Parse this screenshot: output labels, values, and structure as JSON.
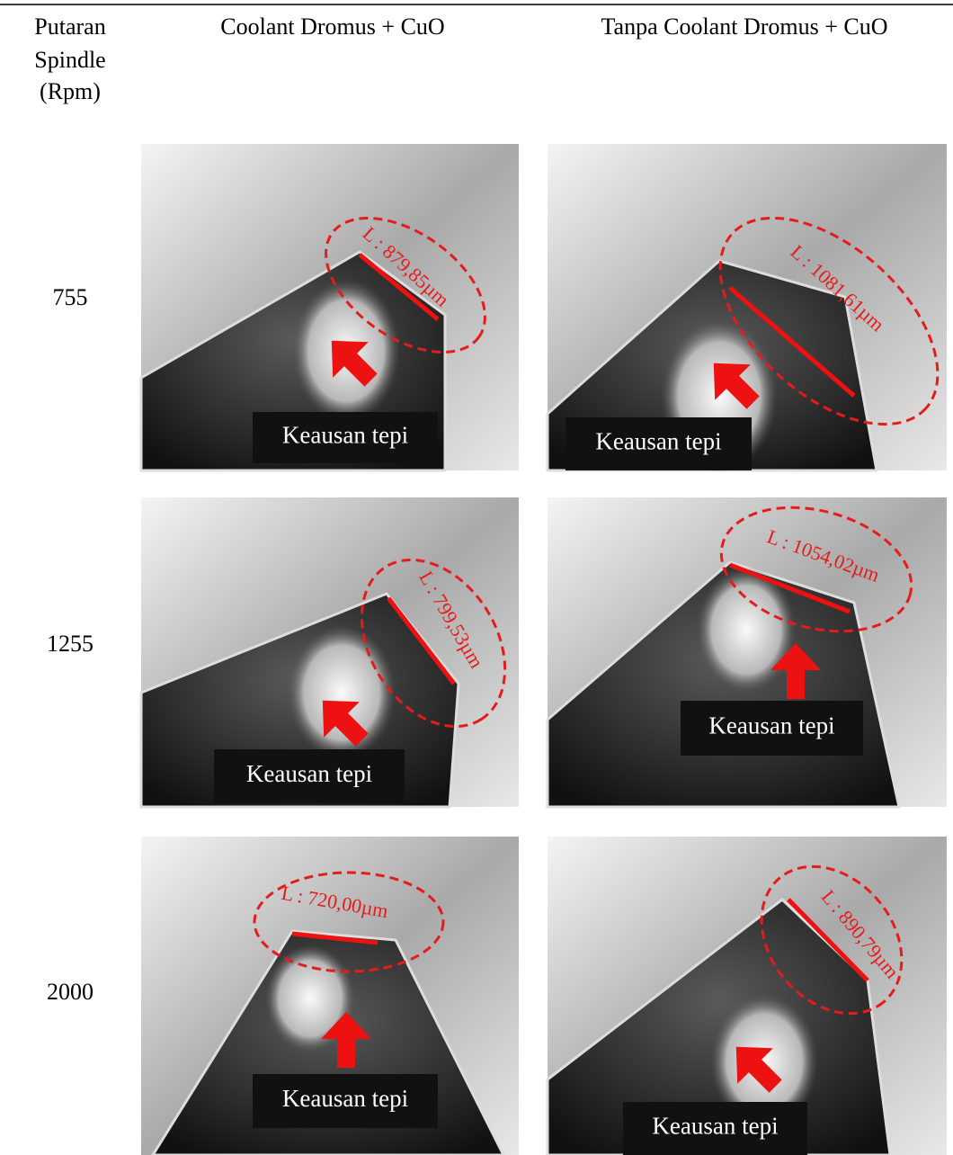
{
  "header": {
    "first_column": [
      "Putaran",
      "Spindle",
      "(Rpm)"
    ],
    "columns": [
      "Coolant Dromus + CuO",
      "Tanpa Coolant Dromus + CuO"
    ]
  },
  "rows": [
    {
      "rpm": "755",
      "cells": [
        {
          "measure": "L : 879,85µm",
          "label": "Keausan tepi"
        },
        {
          "measure": "L : 1081,61µm",
          "label": "Keausan tepi"
        }
      ]
    },
    {
      "rpm": "1255",
      "cells": [
        {
          "measure": "L : 799,53µm",
          "label": "Keausan tepi"
        },
        {
          "measure": "L : 1054,02µm",
          "label": "Keausan tepi"
        }
      ]
    },
    {
      "rpm": "2000",
      "cells": [
        {
          "measure": "L : 720,00µm",
          "label": "Keausan tepi"
        },
        {
          "measure": "L : 890,79µm",
          "label": "Keausan tepi"
        }
      ]
    }
  ]
}
